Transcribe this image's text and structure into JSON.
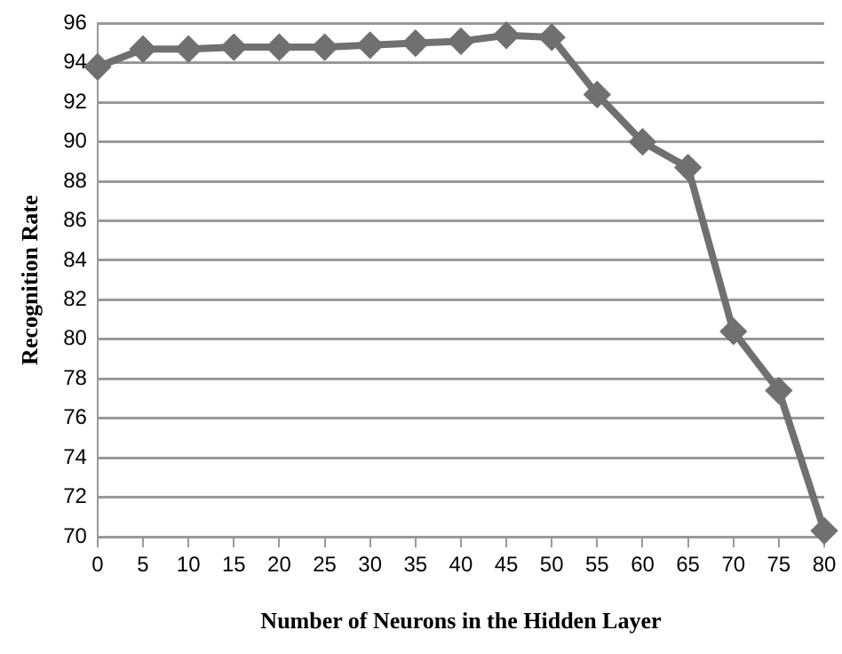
{
  "chart_data": {
    "type": "line",
    "xlabel": "Number of Neurons in the Hidden Layer",
    "ylabel": "Recognition Rate",
    "x": [
      0,
      5,
      10,
      15,
      20,
      25,
      30,
      35,
      40,
      45,
      50,
      55,
      60,
      65,
      70,
      75,
      80
    ],
    "series": [
      {
        "color": "#707070",
        "values": [
          93.8,
          94.7,
          94.7,
          94.8,
          94.8,
          94.8,
          94.9,
          95.0,
          95.1,
          95.4,
          95.3,
          92.4,
          90.0,
          88.7,
          80.4,
          77.4,
          70.3
        ]
      }
    ],
    "xlim": [
      0,
      80
    ],
    "xticks": [
      0,
      5,
      10,
      15,
      20,
      25,
      30,
      35,
      40,
      45,
      50,
      55,
      60,
      65,
      70,
      75,
      80
    ],
    "ylim": [
      70,
      96
    ],
    "yticks": [
      70,
      72,
      74,
      76,
      78,
      80,
      82,
      84,
      86,
      88,
      90,
      92,
      94,
      96
    ],
    "grid": "y",
    "legend": false,
    "marker": "diamond",
    "line_style": "solid"
  }
}
